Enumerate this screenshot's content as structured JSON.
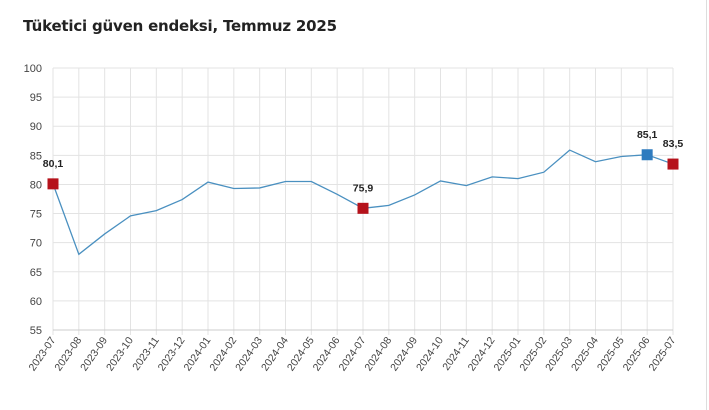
{
  "chart_data": {
    "type": "line",
    "title": "Tüketici güven endeksi, Temmuz 2025",
    "xlabel": "",
    "ylabel": "",
    "ylim": [
      55,
      100
    ],
    "yticks": [
      55,
      60,
      65,
      70,
      75,
      80,
      85,
      90,
      95,
      100
    ],
    "grid": true,
    "line_color": "#4a90c0",
    "categories": [
      "2023-07",
      "2023-08",
      "2023-09",
      "2023-10",
      "2023-11",
      "2023-12",
      "2024-01",
      "2024-02",
      "2024-03",
      "2024-04",
      "2024-05",
      "2024-06",
      "2024-07",
      "2024-08",
      "2024-09",
      "2024-10",
      "2024-11",
      "2024-12",
      "2025-01",
      "2025-02",
      "2025-03",
      "2025-04",
      "2025-05",
      "2025-06",
      "2025-07"
    ],
    "values": [
      80.1,
      68.0,
      71.5,
      74.6,
      75.5,
      77.4,
      80.4,
      79.3,
      79.4,
      80.5,
      80.5,
      78.3,
      75.9,
      76.4,
      78.2,
      80.6,
      79.8,
      81.3,
      81.0,
      82.1,
      85.9,
      83.9,
      84.8,
      85.1,
      83.5
    ],
    "highlights": [
      {
        "category": "2023-07",
        "label": "80,1",
        "color": "#b5121b"
      },
      {
        "category": "2024-07",
        "label": "75,9",
        "color": "#b5121b"
      },
      {
        "category": "2025-06",
        "label": "85,1",
        "color": "#2e7bbf"
      },
      {
        "category": "2025-07",
        "label": "83,5",
        "color": "#b5121b"
      }
    ]
  }
}
